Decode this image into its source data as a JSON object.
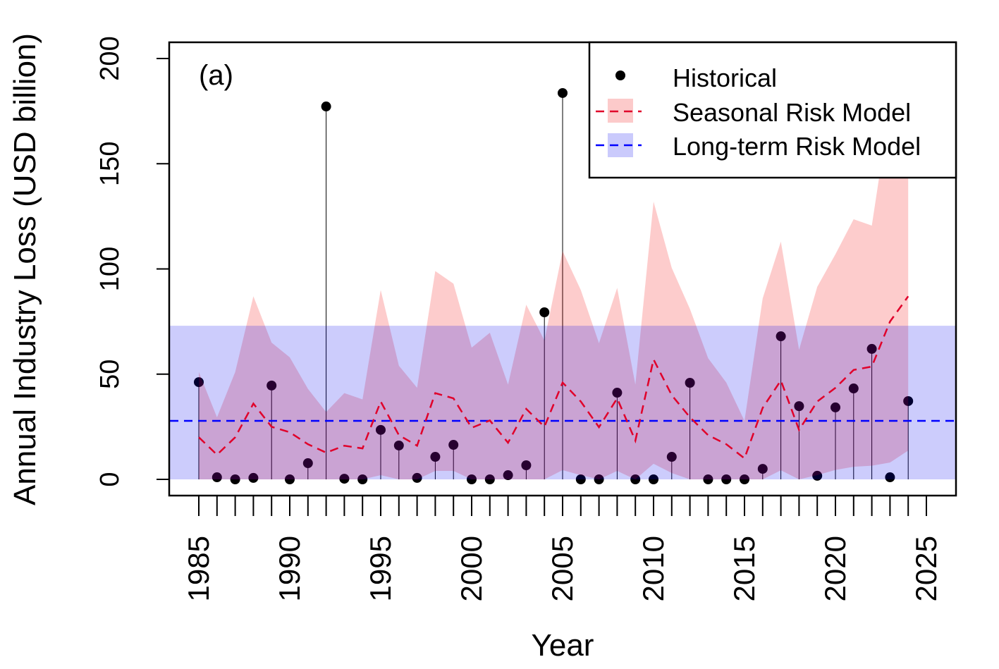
{
  "chart_data": {
    "type": "line",
    "panel_label": "(a)",
    "xlabel": "Year",
    "ylabel": "Annual Industry Loss (USD billion)",
    "xlim": [
      1985,
      2025
    ],
    "ylim": [
      0,
      200
    ],
    "x_ticks": [
      1985,
      1990,
      1995,
      2000,
      2005,
      2010,
      2015,
      2020,
      2025
    ],
    "y_ticks": [
      0,
      50,
      100,
      150,
      200
    ],
    "grid": false,
    "legend_position": "top-right",
    "x": [
      1985,
      1986,
      1987,
      1988,
      1989,
      1990,
      1991,
      1992,
      1993,
      1994,
      1995,
      1996,
      1997,
      1998,
      1999,
      2000,
      2001,
      2002,
      2003,
      2004,
      2005,
      2006,
      2007,
      2008,
      2009,
      2010,
      2011,
      2012,
      2013,
      2014,
      2015,
      2016,
      2017,
      2018,
      2019,
      2020,
      2021,
      2022,
      2023,
      2024
    ],
    "series": [
      {
        "name": "Historical",
        "kind": "points",
        "color": "#000000",
        "values": [
          46.2,
          1,
          0,
          0.7,
          44.6,
          0,
          7.7,
          177.2,
          0.3,
          0,
          23.5,
          16.1,
          0.7,
          10.7,
          16.4,
          0,
          0,
          2,
          6.7,
          79.4,
          183.6,
          0,
          0,
          41.2,
          0,
          0,
          10.7,
          45.9,
          0,
          0,
          0,
          5,
          68,
          34.8,
          1.7,
          34.2,
          43.2,
          62,
          1,
          37.2
        ]
      },
      {
        "name": "Seasonal Risk Model",
        "kind": "band+dashed-line",
        "color": "#E0002A",
        "band_color": "#FCCACA",
        "mean": [
          20,
          11.7,
          20,
          36,
          25,
          22.4,
          16.7,
          12.7,
          16,
          14.7,
          37,
          21,
          16,
          41,
          38.5,
          24.5,
          28,
          17.4,
          33.5,
          25,
          46,
          37,
          24.8,
          38.5,
          18.4,
          57,
          40,
          29.5,
          21,
          16.7,
          10,
          34,
          47,
          23.5,
          37,
          43.5,
          52,
          53.6,
          75,
          87
        ],
        "upper": [
          51,
          29.5,
          51,
          87,
          65,
          58,
          43,
          32,
          41,
          38,
          90,
          54,
          43.5,
          99,
          93,
          62.6,
          69.7,
          45,
          83,
          66,
          108.5,
          90,
          64.7,
          91,
          45,
          132,
          100.5,
          81,
          57.6,
          46,
          27.8,
          86,
          113,
          61.6,
          91.5,
          107,
          123.6,
          120.6,
          177.5,
          203
        ],
        "lower": [
          0,
          0,
          0,
          0,
          0,
          0,
          0,
          0,
          0,
          0,
          2,
          0,
          0,
          4,
          4,
          0,
          0,
          0,
          0,
          0,
          4.4,
          2,
          0,
          4,
          0,
          7.4,
          3,
          0,
          0,
          0,
          0,
          0,
          4.3,
          0,
          2,
          4.5,
          6,
          6.5,
          8,
          13.7
        ]
      },
      {
        "name": "Long-term Risk Model",
        "kind": "band+dashed-line",
        "color": "#0000FF",
        "band_color": "#CACAFC",
        "mean": 27.8,
        "upper": 73,
        "lower": 0
      }
    ]
  }
}
